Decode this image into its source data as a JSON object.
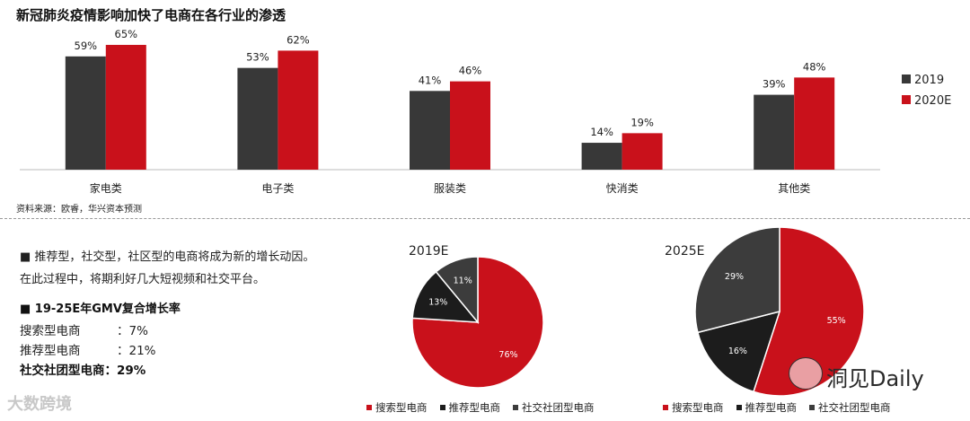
{
  "title": "新冠肺炎疫情影响加快了电商在各行业的渗透",
  "source": "资料来源：欧睿，华兴资本预测",
  "bullets": {
    "line1": "■  推荐型，社交型，社区型的电商将成为新的增长动因。",
    "line2": "在此过程中，将期利好几大短视频和社交平台。"
  },
  "gmv": {
    "heading": "■  19-25E年GMV复合增长率",
    "rows": [
      {
        "label": "搜索型电商",
        "value": "：7%"
      },
      {
        "label": "推荐型电商",
        "value": "：21%"
      },
      {
        "label": "社交社团型电商",
        "value": "：29%"
      }
    ]
  },
  "watermarks": {
    "left": "大数跨境",
    "right": "洞见Daily"
  },
  "colors": {
    "dark": "#383838",
    "red": "#c9111b",
    "black": "#1c1c1c",
    "gray": "#3c3c3c"
  },
  "chart_data": [
    {
      "type": "bar",
      "categories": [
        "家电类",
        "电子类",
        "服装类",
        "快消类",
        "其他类"
      ],
      "series": [
        {
          "name": "2019",
          "values": [
            59,
            53,
            41,
            14,
            39
          ],
          "labels": [
            "59%",
            "53%",
            "41%",
            "14%",
            "39%"
          ]
        },
        {
          "name": "2020E",
          "values": [
            65,
            62,
            46,
            19,
            48
          ],
          "labels": [
            "65%",
            "62%",
            "46%",
            "19%",
            "48%"
          ]
        }
      ],
      "ylim": [
        0,
        65
      ],
      "legend": "right"
    },
    {
      "type": "pie",
      "title": "2019E",
      "slices": [
        {
          "name": "搜索型电商",
          "value": 76,
          "label": "76%"
        },
        {
          "name": "推荐型电商",
          "value": 13,
          "label": "13%"
        },
        {
          "name": "社交社团型电商",
          "value": 11,
          "label": "11%"
        }
      ]
    },
    {
      "type": "pie",
      "title": "2025E",
      "slices": [
        {
          "name": "搜索型电商",
          "value": 55,
          "label": "55%"
        },
        {
          "name": "推荐型电商",
          "value": 16,
          "label": "16%"
        },
        {
          "name": "社交社团型电商",
          "value": 29,
          "label": "29%"
        }
      ]
    }
  ]
}
